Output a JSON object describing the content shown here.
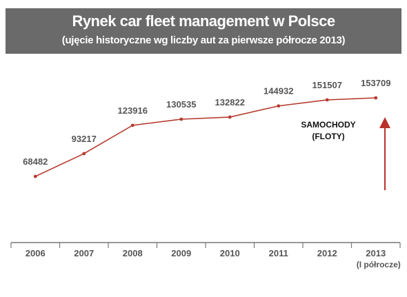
{
  "chart_data": {
    "type": "line",
    "title": "Rynek car fleet management w Polsce",
    "subtitle": "(ujęcie historyczne wg liczby aut za pierwsze półrocze 2013)",
    "categories": [
      "2006",
      "2007",
      "2008",
      "2009",
      "2010",
      "2011",
      "2012",
      "2013"
    ],
    "category_sublabels": [
      "",
      "",
      "",
      "",
      "",
      "",
      "",
      "(I półrocze)"
    ],
    "series": [
      {
        "name": "SAMOCHODY (FLOTY)",
        "values": [
          68482,
          93217,
          123916,
          130535,
          132822,
          144932,
          151507,
          153709
        ]
      }
    ],
    "annotation": {
      "line1": "SAMOCHODY",
      "line2": "(FLOTY)"
    },
    "grid": false,
    "colors": {
      "line": "#b53a2e",
      "header_bg": "#6a6a6a",
      "arrow": "#b8322a",
      "text": "#555555"
    }
  }
}
